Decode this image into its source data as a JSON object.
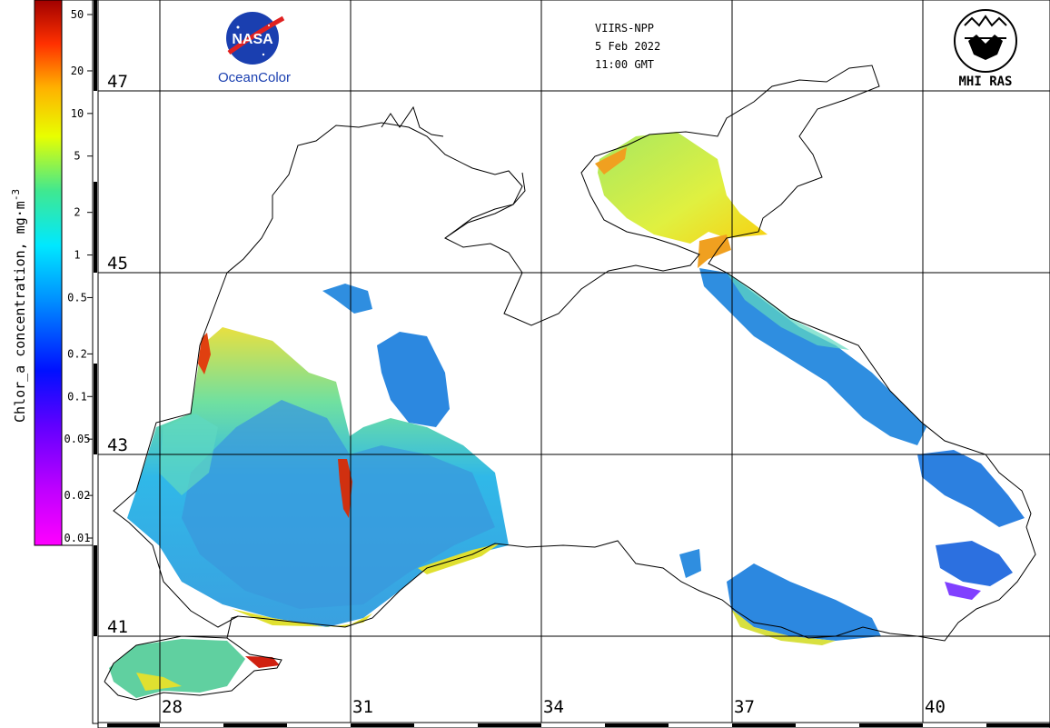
{
  "header": {
    "satellite": "VIIRS-NPP",
    "date": "5 Feb 2022",
    "time": "11:00 GMT"
  },
  "logos": {
    "nasa_text": "NASA",
    "oceancolor": "OceanColor",
    "mhi": "MHI RAS"
  },
  "colorbar": {
    "title": "Chlor_a concentration, mg·m",
    "title_sup": "-3",
    "ticks": [
      {
        "value": 50,
        "label": "50"
      },
      {
        "value": 20,
        "label": "20"
      },
      {
        "value": 10,
        "label": "10"
      },
      {
        "value": 5,
        "label": "5"
      },
      {
        "value": 2,
        "label": "2"
      },
      {
        "value": 1,
        "label": "1"
      },
      {
        "value": 0.5,
        "label": "0.5"
      },
      {
        "value": 0.2,
        "label": "0.2"
      },
      {
        "value": 0.1,
        "label": "0.1"
      },
      {
        "value": 0.05,
        "label": "0.05"
      },
      {
        "value": 0.02,
        "label": "0.02"
      },
      {
        "value": 0.01,
        "label": "0.01"
      }
    ],
    "colors": [
      "#ff00ff",
      "#8000ff",
      "#0000ff",
      "#0088ff",
      "#00e0ff",
      "#40e080",
      "#f0ff00",
      "#ffa000",
      "#ff2000",
      "#900000"
    ]
  },
  "grid": {
    "latitudes": [
      {
        "label": "47"
      },
      {
        "label": "45"
      },
      {
        "label": "43"
      },
      {
        "label": "41"
      }
    ],
    "longitudes": [
      {
        "label": "28"
      },
      {
        "label": "31"
      },
      {
        "label": "34"
      },
      {
        "label": "37"
      },
      {
        "label": "40"
      }
    ]
  }
}
